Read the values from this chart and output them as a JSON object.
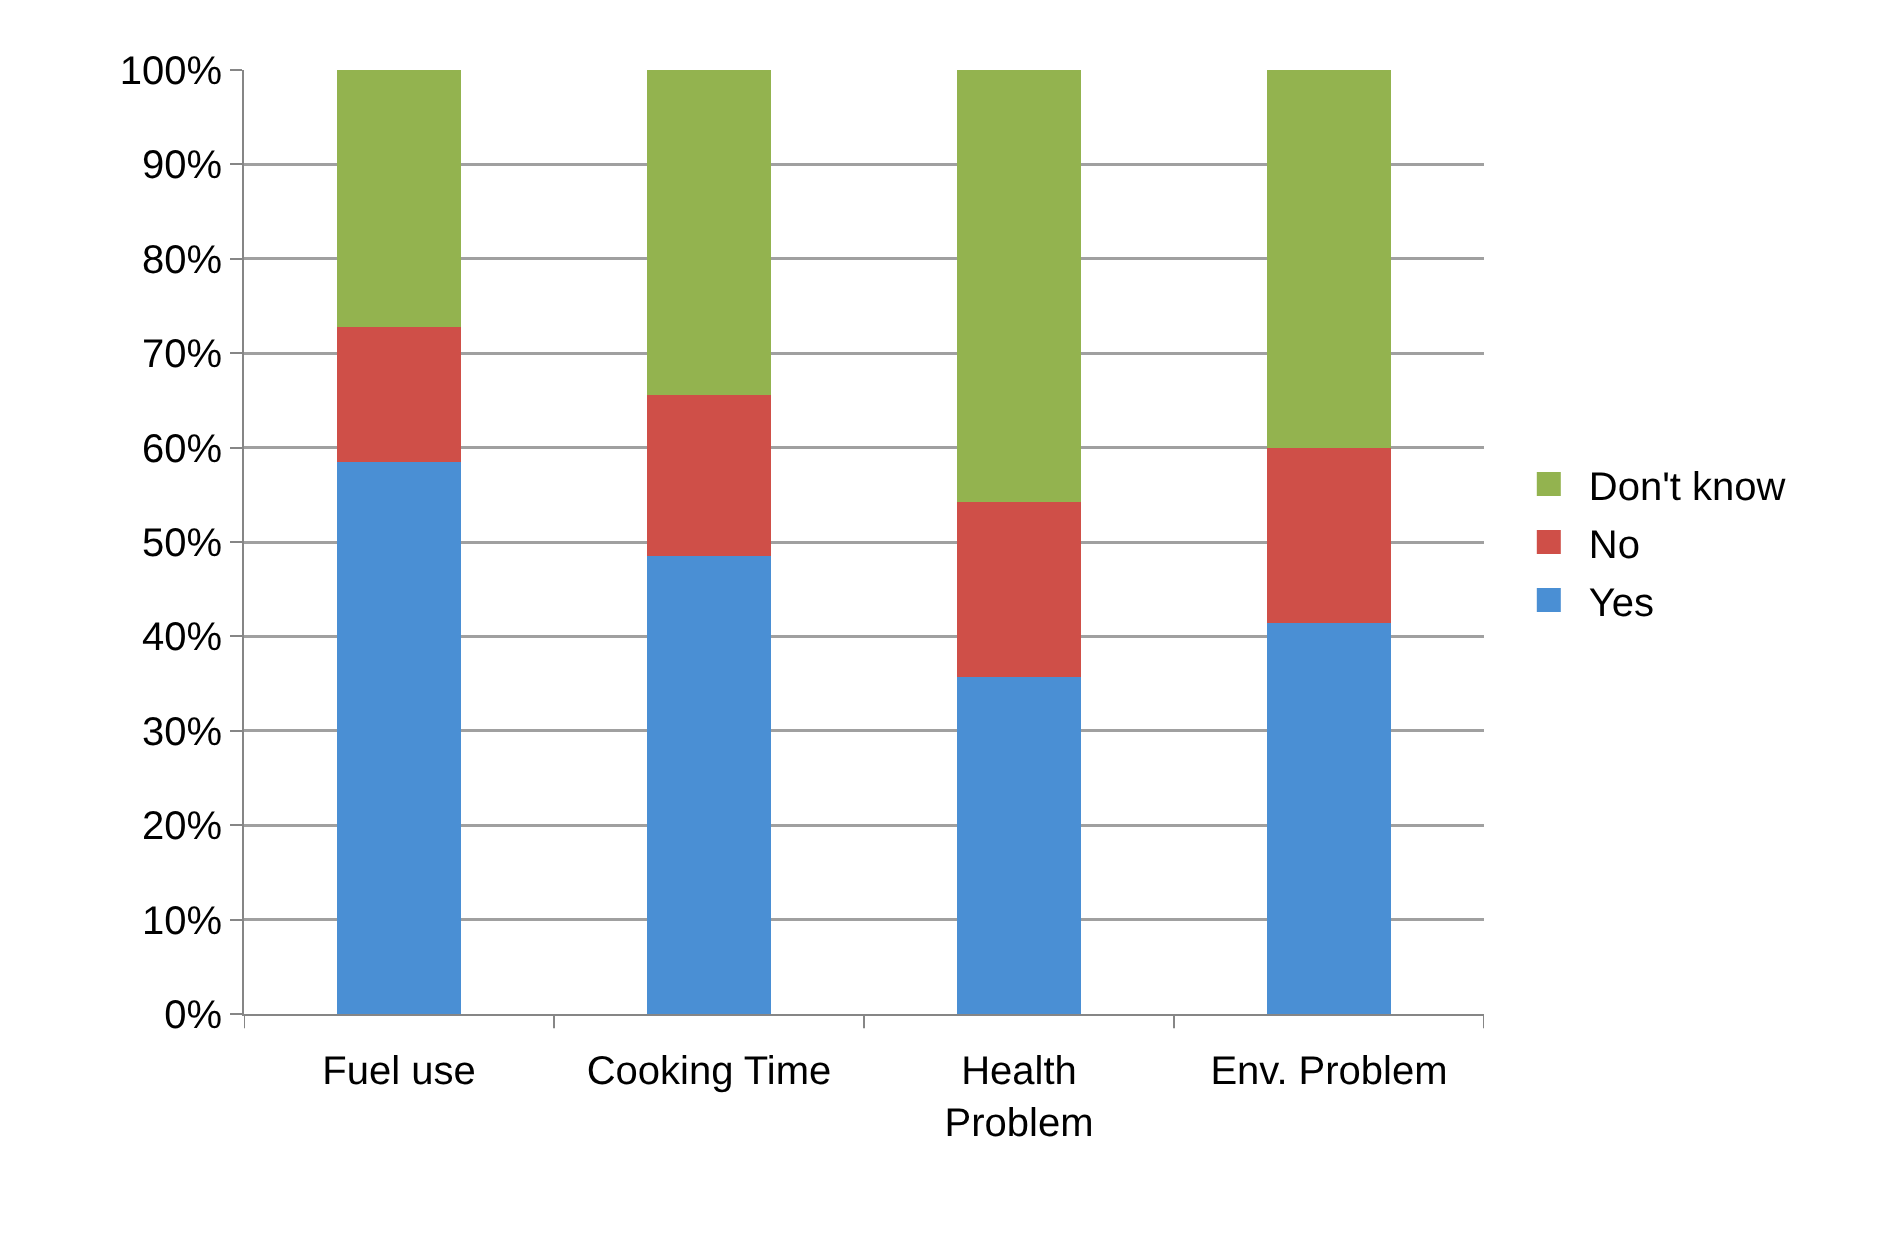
{
  "chart_data": {
    "type": "bar",
    "stacked": true,
    "categories": [
      "Fuel use",
      "Cooking Time",
      "Health Problem",
      "Env. Problem"
    ],
    "series": [
      {
        "name": "Yes",
        "color": "#4a8fd4",
        "values": [
          58.5,
          48.5,
          35.7,
          41.4
        ]
      },
      {
        "name": "No",
        "color": "#cf4f48",
        "values": [
          14.3,
          17.1,
          18.5,
          18.6
        ]
      },
      {
        "name": "Don't know",
        "color": "#93b34f",
        "values": [
          27.2,
          34.4,
          45.8,
          40
        ]
      }
    ],
    "ylim": [
      0,
      100
    ],
    "yticks": [
      {
        "value": 0,
        "label": "0%"
      },
      {
        "value": 10,
        "label": "10%"
      },
      {
        "value": 20,
        "label": "20%"
      },
      {
        "value": 30,
        "label": "30%"
      },
      {
        "value": 40,
        "label": "40%"
      },
      {
        "value": 50,
        "label": "50%"
      },
      {
        "value": 60,
        "label": "60%"
      },
      {
        "value": 70,
        "label": "70%"
      },
      {
        "value": 80,
        "label": "80%"
      },
      {
        "value": 90,
        "label": "90%"
      },
      {
        "value": 100,
        "label": "100%"
      }
    ],
    "grid": "y",
    "legend": "right"
  }
}
